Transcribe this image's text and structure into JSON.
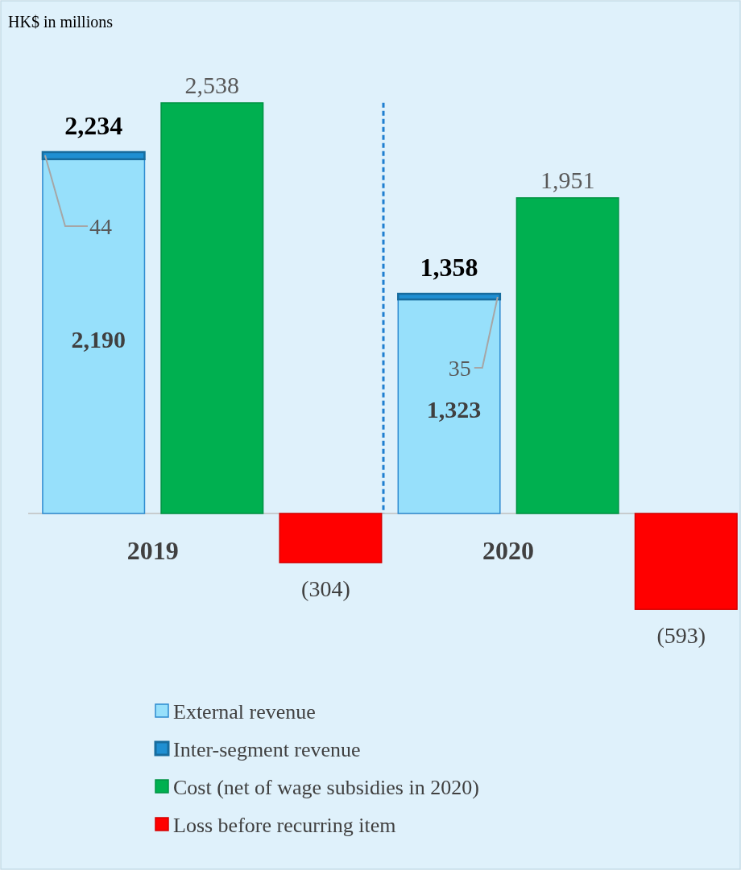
{
  "chart_data": {
    "type": "bar",
    "ylabel": "HK$ in millions",
    "categories": [
      "2019",
      null,
      null,
      "2020",
      null,
      null
    ],
    "stacked": true,
    "series": [
      {
        "name": "External revenue",
        "color": "#97e0fb",
        "values": [
          2190,
          null,
          null,
          1323,
          null,
          null
        ],
        "value_labels": [
          "2,190",
          null,
          null,
          "1,323",
          null,
          null
        ]
      },
      {
        "name": "Inter-segment revenue",
        "color": "#1f8fd2",
        "values": [
          44,
          null,
          null,
          35,
          null,
          null
        ],
        "value_labels": [
          "44",
          null,
          null,
          "35",
          null,
          null
        ]
      },
      {
        "name": "Cost (net of wage subsidies in 2020)",
        "color": "#00b050",
        "values": [
          null,
          2538,
          null,
          null,
          1951,
          null
        ],
        "value_labels": [
          null,
          "2,538",
          null,
          null,
          "1,951",
          null
        ]
      },
      {
        "name": "Loss before recurring item",
        "color": "#ff0000",
        "values": [
          null,
          null,
          -304,
          null,
          null,
          -593
        ],
        "value_labels": [
          null,
          null,
          "(304)",
          null,
          null,
          "(593)"
        ]
      }
    ],
    "totals": [
      "2,234",
      null,
      null,
      "1,358",
      null,
      null
    ],
    "legend": "bottom"
  }
}
